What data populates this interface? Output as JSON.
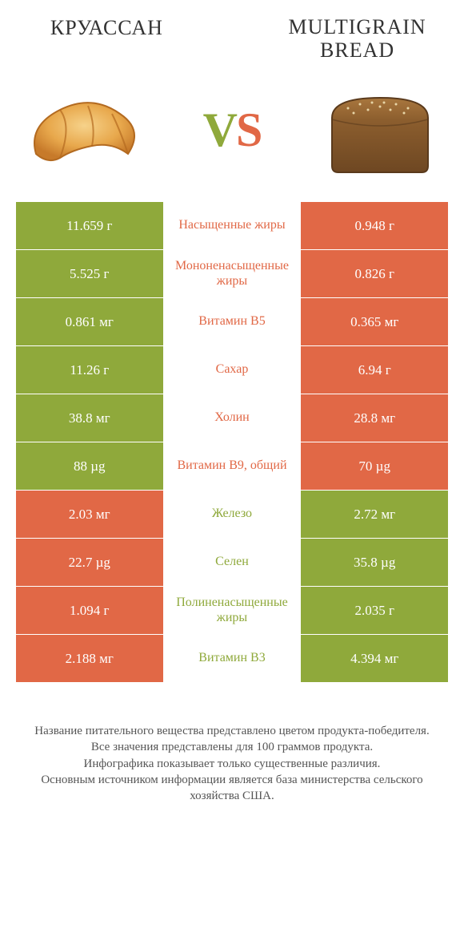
{
  "titles": {
    "left": "КРУАССАН",
    "right": "MULTIGRAIN BREAD"
  },
  "vs": {
    "v": "V",
    "s": "S"
  },
  "colors": {
    "green": "#8fa93b",
    "orange": "#e16846",
    "mid_orange_text": "#e16846",
    "mid_green_text": "#8fa93b"
  },
  "rows": [
    {
      "left": "11.659 г",
      "mid": "Насыщенные жиры",
      "right": "0.948 г",
      "winner": "left"
    },
    {
      "left": "5.525 г",
      "mid": "Мононенасыщенные жиры",
      "right": "0.826 г",
      "winner": "left"
    },
    {
      "left": "0.861 мг",
      "mid": "Витамин B5",
      "right": "0.365 мг",
      "winner": "left"
    },
    {
      "left": "11.26 г",
      "mid": "Сахар",
      "right": "6.94 г",
      "winner": "left"
    },
    {
      "left": "38.8 мг",
      "mid": "Холин",
      "right": "28.8 мг",
      "winner": "left"
    },
    {
      "left": "88 µg",
      "mid": "Витамин B9, общий",
      "right": "70 µg",
      "winner": "left"
    },
    {
      "left": "2.03 мг",
      "mid": "Железо",
      "right": "2.72 мг",
      "winner": "right"
    },
    {
      "left": "22.7 µg",
      "mid": "Селен",
      "right": "35.8 µg",
      "winner": "right"
    },
    {
      "left": "1.094 г",
      "mid": "Полиненасыщенные жиры",
      "right": "2.035 г",
      "winner": "right"
    },
    {
      "left": "2.188 мг",
      "mid": "Витамин B3",
      "right": "4.394 мг",
      "winner": "right"
    }
  ],
  "footer": "Название питательного вещества представлено цветом продукта-победителя.\nВсе значения представлены для 100 граммов продукта.\nИнфографика показывает только существенные различия.\nОсновным источником информации является база министерства сельского хозяйства США."
}
